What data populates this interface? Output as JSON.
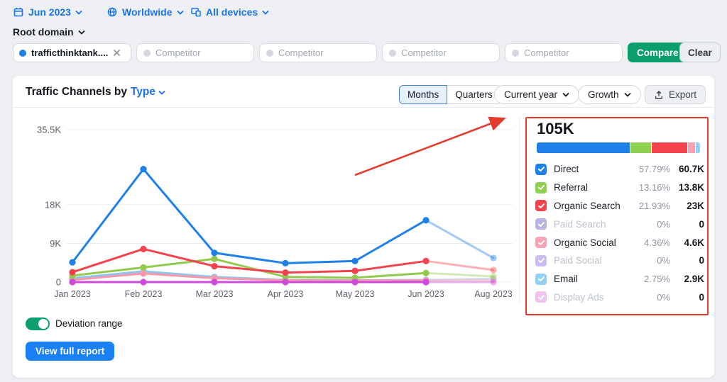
{
  "filters": {
    "date": "Jun 2023",
    "region": "Worldwide",
    "devices": "All devices",
    "scope": "Root domain",
    "domain": "trafficthinktank....",
    "domain_dot_color": "#1e80e8",
    "competitor_placeholder": "Competitor",
    "compare_label": "Compare",
    "clear_label": "Clear"
  },
  "header": {
    "title_prefix": "Traffic Channels by",
    "title_link": "Type",
    "toggle_months": "Months",
    "toggle_quarters": "Quarters",
    "period_dropdown": "Current year",
    "metric_dropdown": "Growth",
    "export_label": "Export"
  },
  "summary": {
    "total": "105K",
    "rows": [
      {
        "label": "Direct",
        "pct": "57.79%",
        "pct_num": 57.79,
        "value": "60.7K",
        "color": "#1e80e8",
        "enabled": true
      },
      {
        "label": "Referral",
        "pct": "13.16%",
        "pct_num": 13.16,
        "value": "13.8K",
        "color": "#8ed04f",
        "enabled": true
      },
      {
        "label": "Organic Search",
        "pct": "21.93%",
        "pct_num": 21.93,
        "value": "23K",
        "color": "#f4434d",
        "enabled": true
      },
      {
        "label": "Paid Search",
        "pct": "0%",
        "pct_num": 0,
        "value": "0",
        "color": "#b7b3e3",
        "enabled": false
      },
      {
        "label": "Organic Social",
        "pct": "4.36%",
        "pct_num": 4.36,
        "value": "4.6K",
        "color": "#f9a2b4",
        "enabled": true
      },
      {
        "label": "Paid Social",
        "pct": "0%",
        "pct_num": 0,
        "value": "0",
        "color": "#c9bcf2",
        "enabled": false
      },
      {
        "label": "Email",
        "pct": "2.75%",
        "pct_num": 2.75,
        "value": "2.9K",
        "color": "#8fd2f5",
        "enabled": true
      },
      {
        "label": "Display Ads",
        "pct": "0%",
        "pct_num": 0,
        "value": "0",
        "color": "#efc3ec",
        "enabled": false
      }
    ]
  },
  "chart_data": {
    "type": "line",
    "categories": [
      "Jan 2023",
      "Feb 2023",
      "Mar 2023",
      "Apr 2023",
      "May 2023",
      "Jun 2023",
      "Aug 2023"
    ],
    "unit": "K visits",
    "yticks": [
      {
        "label": "35.5K",
        "value": 35.5
      },
      {
        "label": "18K",
        "value": 18
      },
      {
        "label": "9K",
        "value": 9
      },
      {
        "label": "0",
        "value": 0
      }
    ],
    "ylim": [
      0,
      39
    ],
    "faded_from_index": 5,
    "grid": true,
    "legend_position": "right-panel",
    "series": [
      {
        "name": "Email",
        "color": "#8cc6f0",
        "values": [
          0.9,
          2.5,
          1.2,
          0.5,
          0.4,
          0.5,
          0.8
        ]
      },
      {
        "name": "Organic Social",
        "color": "#f898aa",
        "values": [
          0.5,
          2.0,
          0.9,
          0.4,
          0.3,
          0.4,
          0.5
        ]
      },
      {
        "name": "Referral",
        "color": "#93ca4d",
        "values": [
          1.5,
          3.4,
          5.4,
          1.2,
          1.0,
          2.1,
          1.3
        ]
      },
      {
        "name": "Organic Search",
        "color": "#f4434d",
        "values": [
          2.3,
          7.7,
          3.7,
          2.2,
          2.6,
          4.9,
          2.8
        ]
      },
      {
        "name": "Paid Search",
        "color": "#cf49dd",
        "values": [
          0,
          0,
          0,
          0,
          0,
          0,
          0
        ]
      },
      {
        "name": "Direct",
        "color": "#1e80e8",
        "values": [
          4.6,
          26.3,
          6.8,
          4.4,
          4.9,
          14.4,
          5.6
        ]
      }
    ]
  },
  "annotation": {
    "color": "#e23b2e"
  },
  "footer": {
    "deviation_label": "Deviation range",
    "view_report_label": "View full report"
  }
}
